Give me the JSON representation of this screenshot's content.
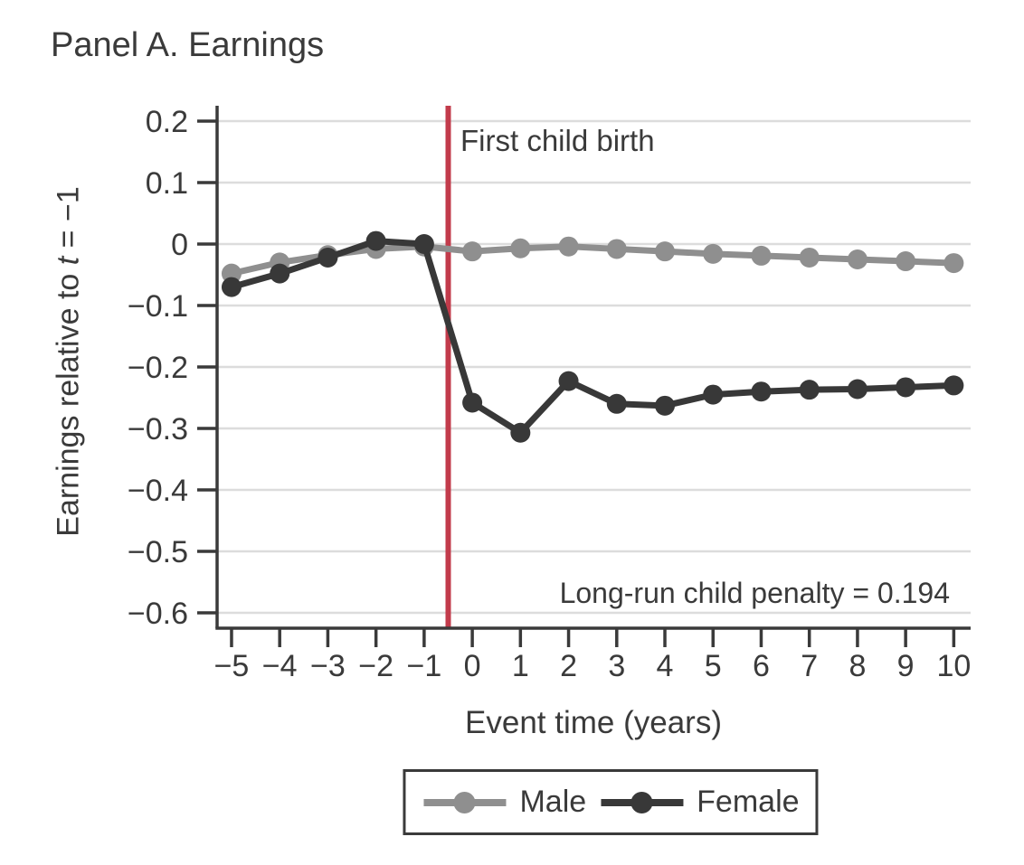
{
  "title": "Panel A. Earnings",
  "axes": {
    "xlabel": "Event time (years)",
    "ylabel_prefix": "Earnings relative to ",
    "ylabel_var": "t",
    "ylabel_suffix": " = −1"
  },
  "annotations": {
    "vline_label": "First child birth",
    "penalty": "Long-run child penalty = 0.194"
  },
  "legend": {
    "items": [
      {
        "label": "Male",
        "color": "#8f8f8f"
      },
      {
        "label": "Female",
        "color": "#383838"
      }
    ]
  },
  "colors": {
    "axis": "#3a3a3a",
    "grid": "#dcdcdc",
    "vline": "#c23b4b",
    "male": "#8f8f8f",
    "female": "#383838",
    "text": "#3a3a3a"
  },
  "chart_data": {
    "type": "line",
    "title": "Panel A. Earnings",
    "xlabel": "Event time (years)",
    "ylabel": "Earnings relative to t = −1",
    "x": [
      -5,
      -4,
      -3,
      -2,
      -1,
      0,
      1,
      2,
      3,
      4,
      5,
      6,
      7,
      8,
      9,
      10
    ],
    "series": [
      {
        "name": "Male",
        "color": "#8f8f8f",
        "values": [
          -0.048,
          -0.03,
          -0.018,
          -0.008,
          -0.004,
          -0.012,
          -0.007,
          -0.004,
          -0.008,
          -0.012,
          -0.016,
          -0.019,
          -0.022,
          -0.025,
          -0.028,
          -0.031
        ]
      },
      {
        "name": "Female",
        "color": "#383838",
        "values": [
          -0.07,
          -0.048,
          -0.022,
          0.005,
          0.0,
          -0.258,
          -0.307,
          -0.223,
          -0.26,
          -0.263,
          -0.245,
          -0.24,
          -0.237,
          -0.236,
          -0.233,
          -0.23
        ]
      }
    ],
    "x_tick_values": [
      -5,
      -4,
      -3,
      -2,
      -1,
      0,
      1,
      2,
      3,
      4,
      5,
      6,
      7,
      8,
      9,
      10
    ],
    "x_tick_labels": [
      "−5",
      "−4",
      "−3",
      "−2",
      "−1",
      "0",
      "1",
      "2",
      "3",
      "4",
      "5",
      "6",
      "7",
      "8",
      "9",
      "10"
    ],
    "y_tick_values": [
      0.2,
      0.1,
      0,
      -0.1,
      -0.2,
      -0.3,
      -0.4,
      -0.5,
      -0.6
    ],
    "y_tick_labels": [
      "0.2",
      "0.1",
      "0",
      "−0.1",
      "−0.2",
      "−0.3",
      "−0.4",
      "−0.5",
      "−0.6"
    ],
    "xlim": [
      -5.3,
      10.35
    ],
    "ylim": [
      -0.625,
      0.225
    ],
    "grid": "horizontal",
    "legend_position": "bottom",
    "vline": {
      "x": -0.5,
      "label": "First child birth"
    },
    "annotation": "Long-run child penalty = 0.194"
  }
}
